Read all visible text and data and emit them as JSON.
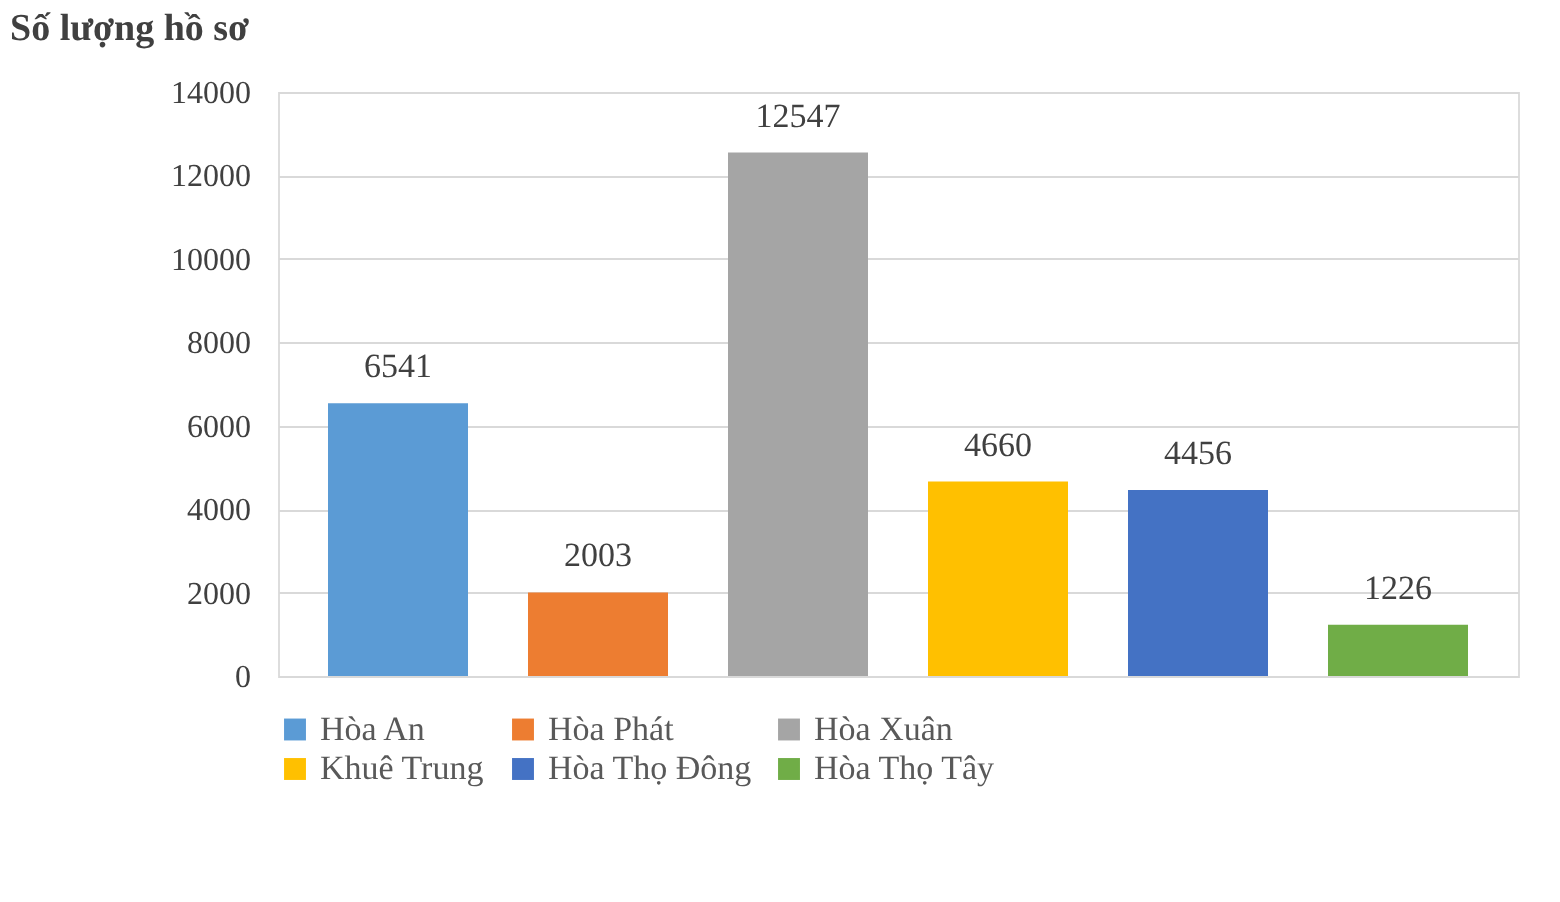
{
  "chart_data": {
    "type": "bar",
    "title": "Số lượng hồ sơ",
    "categories": [
      null,
      null,
      null,
      null,
      null,
      null
    ],
    "series": [
      {
        "name": "Hòa An",
        "color": "#5b9bd5",
        "values": [
          6541,
          null,
          null,
          null,
          null,
          null
        ]
      },
      {
        "name": "Hòa Phát",
        "color": "#ed7d31",
        "values": [
          null,
          2003,
          null,
          null,
          null,
          null
        ]
      },
      {
        "name": "Hòa Xuân",
        "color": "#a5a5a5",
        "values": [
          null,
          null,
          12547,
          null,
          null,
          null
        ]
      },
      {
        "name": "Khuê Trung",
        "color": "#ffc000",
        "values": [
          null,
          null,
          null,
          4660,
          null,
          null
        ]
      },
      {
        "name": "Hòa Thọ Đông",
        "color": "#4472c4",
        "values": [
          null,
          null,
          null,
          null,
          4456,
          null
        ]
      },
      {
        "name": "Hòa Thọ Tây",
        "color": "#70ad47",
        "values": [
          null,
          null,
          null,
          null,
          null,
          1226
        ]
      }
    ],
    "ylim": [
      0,
      14000
    ],
    "yticks": [
      0,
      2000,
      4000,
      6000,
      8000,
      10000,
      12000,
      14000
    ],
    "grid": "y",
    "legend": "bottom",
    "data_labels": true,
    "tick_labels": "y"
  }
}
